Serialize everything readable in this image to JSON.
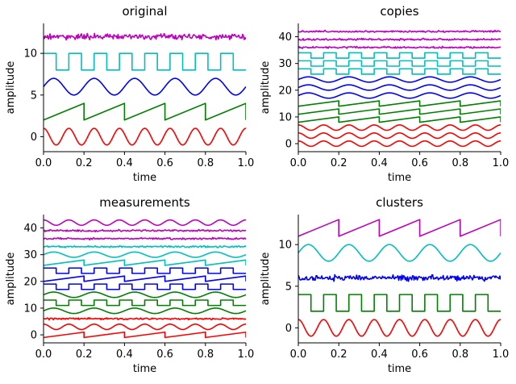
{
  "chart_data": [
    {
      "type": "line",
      "title": "original",
      "xlabel": "time",
      "ylabel": "amplitude",
      "xlim": [
        0,
        1
      ],
      "ylim": [
        -1.8,
        13.6
      ],
      "xticks": [
        "0.0",
        "0.2",
        "0.4",
        "0.6",
        "0.8",
        "1.0"
      ],
      "yticks": [
        0,
        5,
        10
      ],
      "grid": false,
      "series": [
        {
          "kind": "noise",
          "color": "#bf00bf",
          "offset": 12,
          "amp": 0.35
        },
        {
          "kind": "square",
          "color": "#00bfbf",
          "offset": 9,
          "amp": 1,
          "period": 0.125
        },
        {
          "kind": "sine",
          "color": "#0000ff",
          "offset": 6,
          "amp": 1,
          "period": 0.2,
          "phase": 0
        },
        {
          "kind": "saw",
          "color": "#008000",
          "offset": 3,
          "amp": 1,
          "period": 0.2
        },
        {
          "kind": "sine",
          "color": "#ff0000",
          "offset": 0,
          "amp": 1,
          "period": 0.125,
          "phase": 0.25
        }
      ]
    },
    {
      "type": "line",
      "title": "copies",
      "xlabel": "time",
      "ylabel": "amplitude",
      "xlim": [
        0,
        1
      ],
      "ylim": [
        -3,
        45
      ],
      "xticks": [
        "0.0",
        "0.2",
        "0.4",
        "0.6",
        "0.8",
        "1.0"
      ],
      "yticks": [
        0,
        10,
        20,
        30,
        40
      ],
      "grid": false,
      "series": [
        {
          "kind": "noise",
          "color": "#bf00bf",
          "offset": 42,
          "amp": 0.35
        },
        {
          "kind": "noise",
          "color": "#bf00bf",
          "offset": 39,
          "amp": 0.35
        },
        {
          "kind": "noise",
          "color": "#bf00bf",
          "offset": 36,
          "amp": 0.35
        },
        {
          "kind": "square",
          "color": "#00bfbf",
          "offset": 33,
          "amp": 1,
          "period": 0.125
        },
        {
          "kind": "square",
          "color": "#00bfbf",
          "offset": 30,
          "amp": 1,
          "period": 0.125
        },
        {
          "kind": "square",
          "color": "#00bfbf",
          "offset": 27,
          "amp": 1,
          "period": 0.125
        },
        {
          "kind": "sine",
          "color": "#0000ff",
          "offset": 24,
          "amp": 1,
          "period": 0.2,
          "phase": 0
        },
        {
          "kind": "sine",
          "color": "#0000ff",
          "offset": 21,
          "amp": 1,
          "period": 0.2,
          "phase": 0
        },
        {
          "kind": "sine",
          "color": "#0000ff",
          "offset": 18,
          "amp": 1,
          "period": 0.2,
          "phase": 0
        },
        {
          "kind": "saw",
          "color": "#008000",
          "offset": 15,
          "amp": 1,
          "period": 0.2
        },
        {
          "kind": "saw",
          "color": "#008000",
          "offset": 12,
          "amp": 1,
          "period": 0.2
        },
        {
          "kind": "saw",
          "color": "#008000",
          "offset": 9,
          "amp": 1,
          "period": 0.2
        },
        {
          "kind": "sine",
          "color": "#ff0000",
          "offset": 6,
          "amp": 1,
          "period": 0.125,
          "phase": 0.25
        },
        {
          "kind": "sine",
          "color": "#ff0000",
          "offset": 3,
          "amp": 1,
          "period": 0.125,
          "phase": 0.25
        },
        {
          "kind": "sine",
          "color": "#ff0000",
          "offset": 0,
          "amp": 1,
          "period": 0.125,
          "phase": 0.25
        }
      ]
    },
    {
      "type": "line",
      "title": "measurements",
      "xlabel": "time",
      "ylabel": "amplitude",
      "xlim": [
        0,
        1
      ],
      "ylim": [
        -3,
        45
      ],
      "xticks": [
        "0.0",
        "0.2",
        "0.4",
        "0.6",
        "0.8",
        "1.0"
      ],
      "yticks": [
        0,
        10,
        20,
        30,
        40
      ],
      "grid": false,
      "series": [
        {
          "kind": "sine",
          "color": "#bf00bf",
          "offset": 42,
          "amp": 1,
          "period": 0.125,
          "phase": 0.25
        },
        {
          "kind": "noise",
          "color": "#bf00bf",
          "offset": 39,
          "amp": 0.35
        },
        {
          "kind": "noise",
          "color": "#bf00bf",
          "offset": 36,
          "amp": 0.35
        },
        {
          "kind": "noise",
          "color": "#00bfbf",
          "offset": 33,
          "amp": 0.35
        },
        {
          "kind": "sine",
          "color": "#00bfbf",
          "offset": 30,
          "amp": 1,
          "period": 0.2,
          "phase": 0
        },
        {
          "kind": "saw",
          "color": "#00bfbf",
          "offset": 27,
          "amp": 1,
          "period": 0.2
        },
        {
          "kind": "square",
          "color": "#0000ff",
          "offset": 24,
          "amp": 1,
          "period": 0.125
        },
        {
          "kind": "saw",
          "color": "#0000ff",
          "offset": 21,
          "amp": 1,
          "period": 0.2
        },
        {
          "kind": "square",
          "color": "#0000ff",
          "offset": 18,
          "amp": 1,
          "period": 0.125
        },
        {
          "kind": "square",
          "color": "#008000",
          "offset": 12,
          "amp": 1,
          "period": 0.125
        },
        {
          "kind": "sine",
          "color": "#008000",
          "offset": 15,
          "amp": 1,
          "period": 0.2,
          "phase": 0
        },
        {
          "kind": "sine",
          "color": "#008000",
          "offset": 9,
          "amp": 1,
          "period": 0.2,
          "phase": 0
        },
        {
          "kind": "noise",
          "color": "#ff0000",
          "offset": 6,
          "amp": 0.35
        },
        {
          "kind": "sine",
          "color": "#ff0000",
          "offset": 3,
          "amp": 1,
          "period": 0.125,
          "phase": 0.25
        },
        {
          "kind": "saw",
          "color": "#ff0000",
          "offset": 0,
          "amp": 1,
          "period": 0.2
        }
      ]
    },
    {
      "type": "line",
      "title": "clusters",
      "xlabel": "time",
      "ylabel": "amplitude",
      "xlim": [
        0,
        1
      ],
      "ylim": [
        -1.8,
        13.6
      ],
      "xticks": [
        "0.0",
        "0.2",
        "0.4",
        "0.6",
        "0.8",
        "1.0"
      ],
      "yticks": [
        0,
        5,
        10
      ],
      "grid": false,
      "series": [
        {
          "kind": "saw",
          "color": "#bf00bf",
          "offset": 12,
          "amp": 1,
          "period": 0.2
        },
        {
          "kind": "sine",
          "color": "#00bfbf",
          "offset": 9,
          "amp": 1,
          "period": 0.2,
          "phase": 0
        },
        {
          "kind": "noise",
          "color": "#0000ff",
          "offset": 6,
          "amp": 0.35
        },
        {
          "kind": "square",
          "color": "#008000",
          "offset": 3,
          "amp": 1,
          "period": 0.125
        },
        {
          "kind": "sine",
          "color": "#ff0000",
          "offset": 0,
          "amp": 1,
          "period": 0.125,
          "phase": 0.25
        }
      ]
    }
  ]
}
